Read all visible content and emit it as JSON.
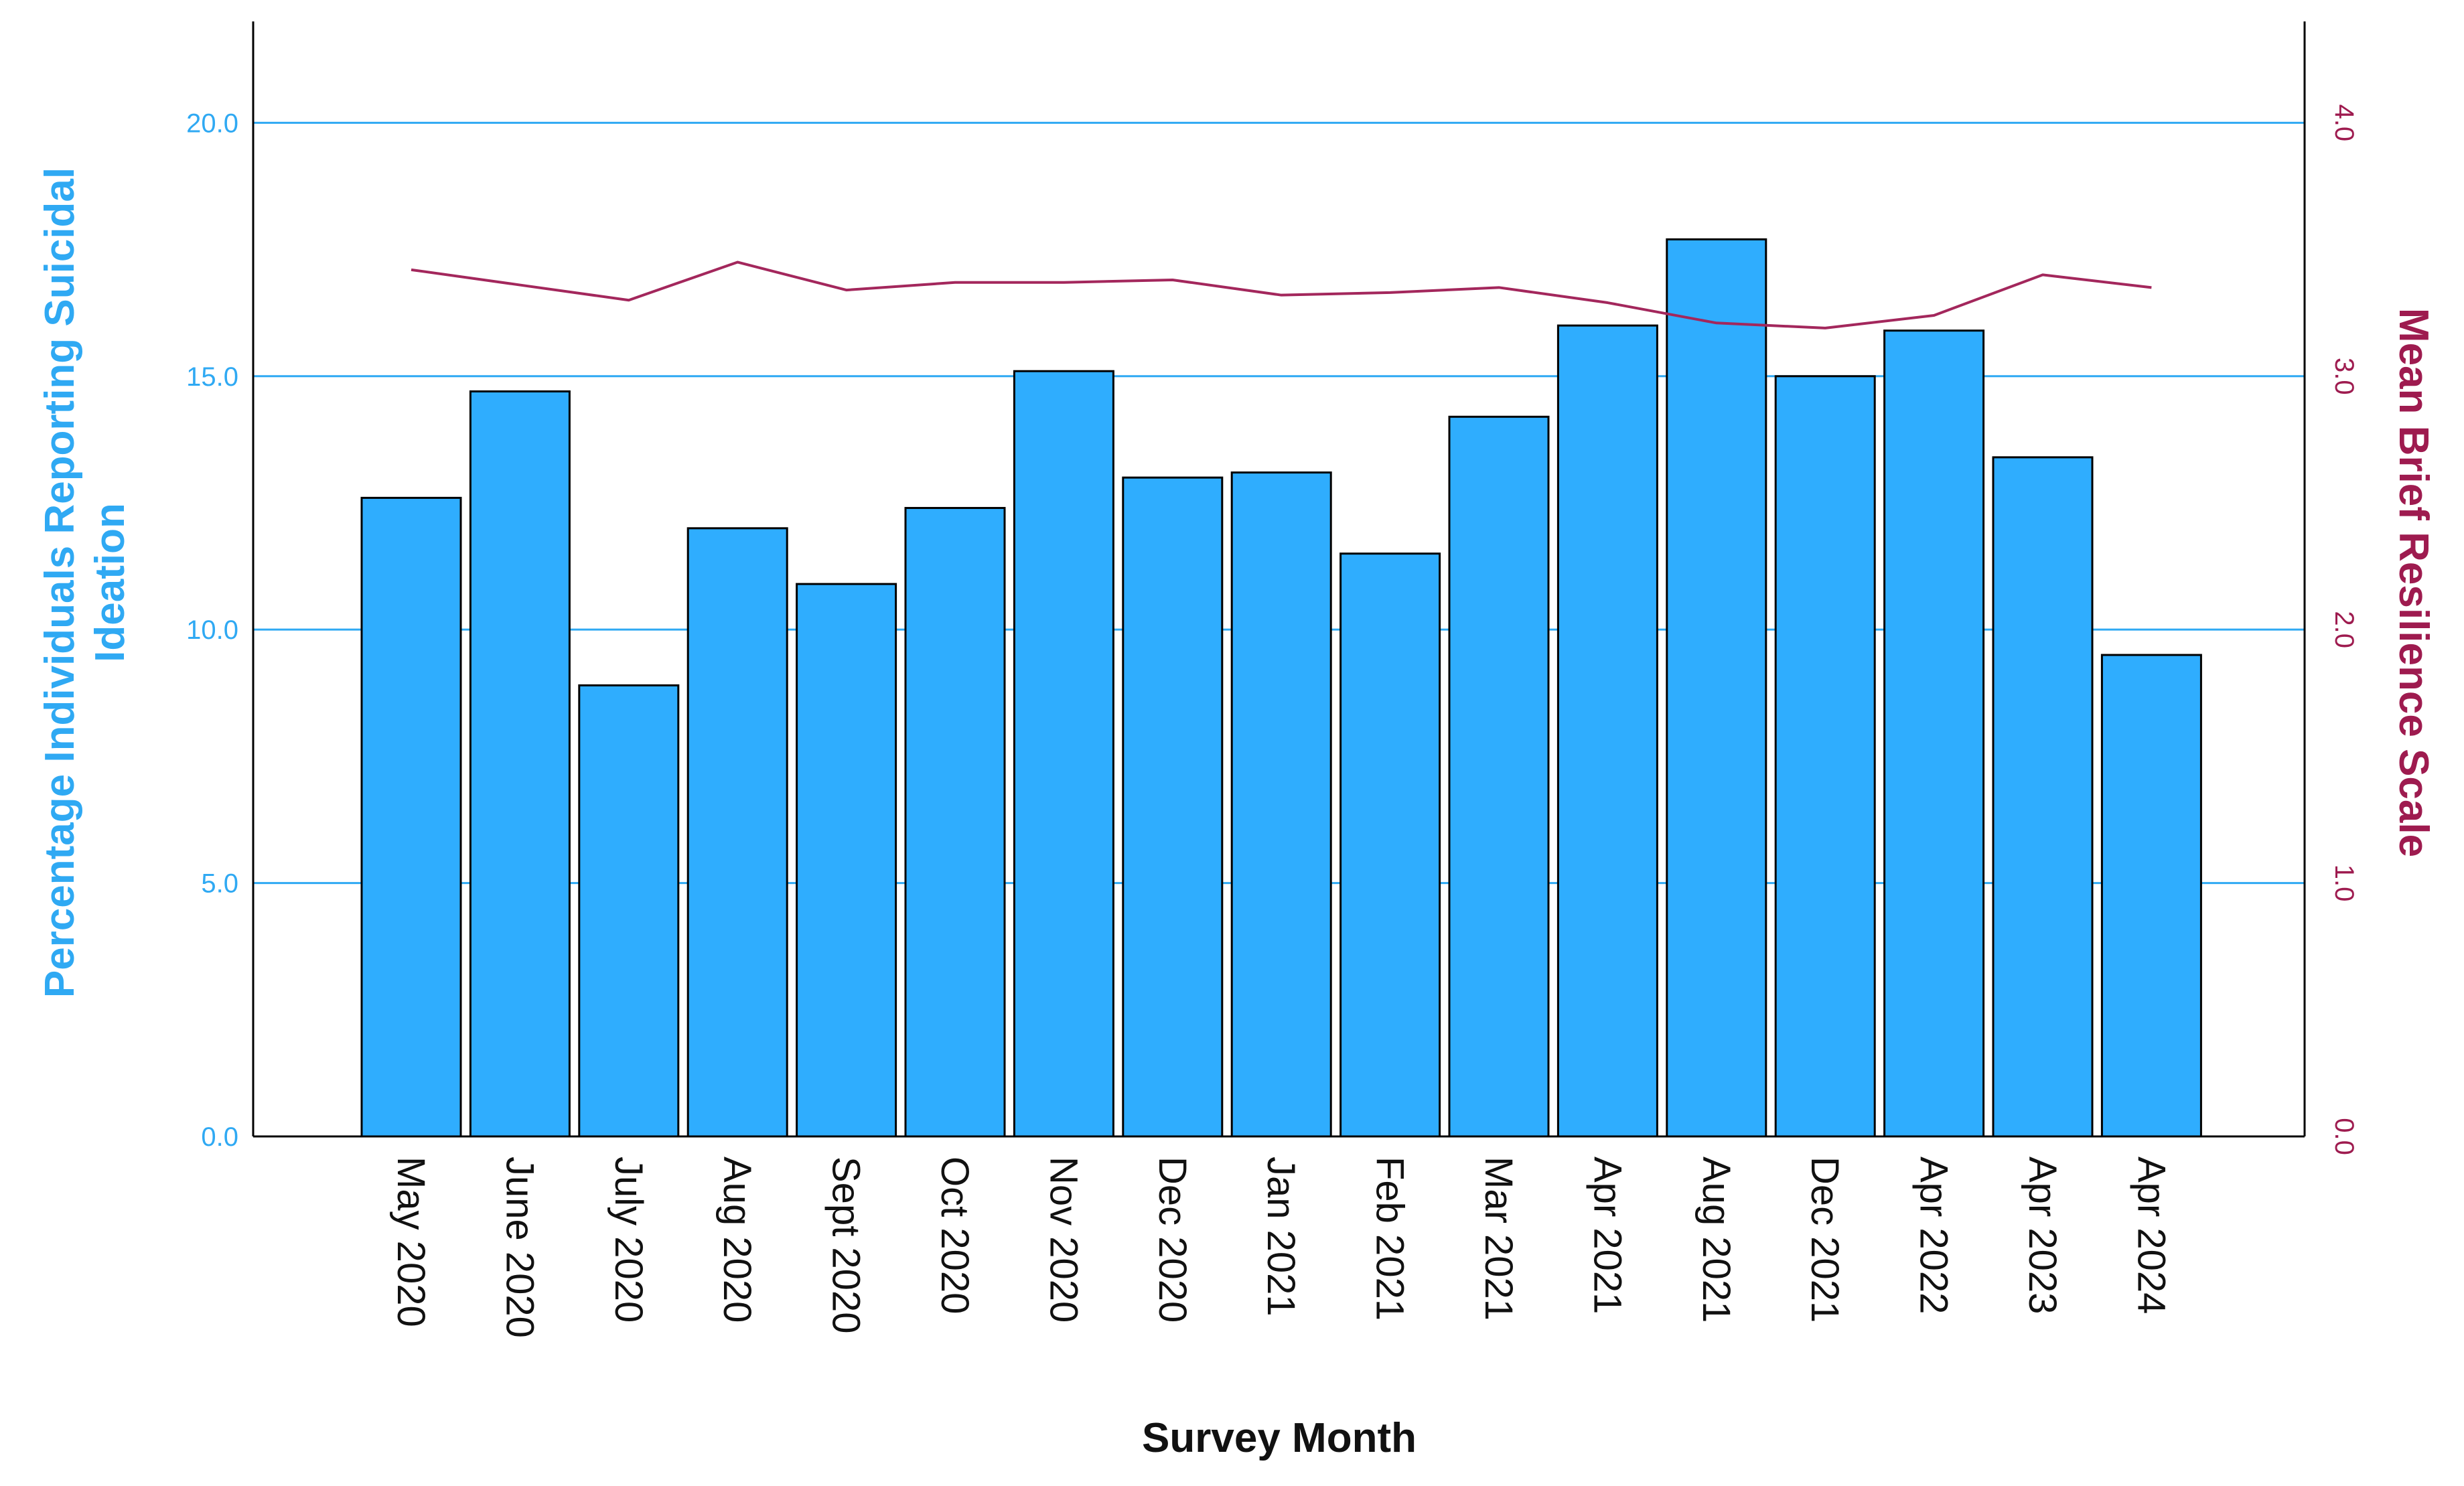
{
  "chart_data": {
    "type": "bar",
    "xlabel": "Survey Month",
    "categories": [
      "May 2020",
      "June 2020",
      "July 2020",
      "Aug 2020",
      "Sept 2020",
      "Oct 2020",
      "Nov 2020",
      "Dec 2020",
      "Jan 2021",
      "Feb 2021",
      "Mar 2021",
      "Apr 2021",
      "Aug 2021",
      "Dec 2021",
      "Apr 2022",
      "Apr 2023",
      "Apr 2024"
    ],
    "series": [
      {
        "name": "Percentage Individuals Reporting Suicidal Ideation",
        "type": "bar",
        "axis": "left",
        "values": [
          12.6,
          14.7,
          8.9,
          12.0,
          10.9,
          12.4,
          15.1,
          13.0,
          13.1,
          11.5,
          14.2,
          16.0,
          17.7,
          15.0,
          15.9,
          13.4,
          9.5
        ],
        "color": "#2fadfe"
      },
      {
        "name": "Mean Brief Resilience Scale",
        "type": "line",
        "axis": "right",
        "values": [
          3.42,
          3.36,
          3.3,
          3.45,
          3.34,
          3.37,
          3.37,
          3.38,
          3.32,
          3.33,
          3.35,
          3.29,
          3.21,
          3.19,
          3.24,
          3.4,
          3.35
        ],
        "color": "#a3275c"
      }
    ],
    "left_axis": {
      "label_line1": "Percentage Individuals Reporting Suicidal",
      "label_line2": "Ideation",
      "ylim": [
        0,
        22
      ],
      "ticks": [
        0,
        5,
        10,
        15,
        20
      ],
      "tick_labels": [
        "0.0",
        "5.0",
        "10.0",
        "15.0",
        "20.0"
      ],
      "color": "#2fa9f3"
    },
    "right_axis": {
      "label": "Mean Brief Resilience Scale",
      "ylim": [
        0,
        4.4
      ],
      "ticks": [
        0,
        1,
        2,
        3,
        4
      ],
      "tick_labels": [
        "0.0",
        "1.0",
        "2.0",
        "3.0",
        "4.0"
      ],
      "color": "#9e1b4f"
    },
    "grid": true,
    "grid_color": "#2fa9f3"
  }
}
